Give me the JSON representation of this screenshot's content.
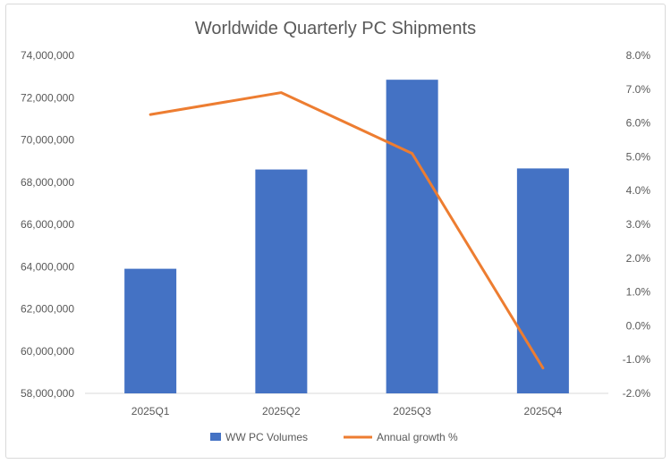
{
  "chart_data": {
    "type": "bar+line",
    "title": "Worldwide Quarterly PC Shipments",
    "categories": [
      "2025Q1",
      "2025Q2",
      "2025Q3",
      "2025Q4"
    ],
    "series": [
      {
        "name": "WW PC Volumes",
        "type": "bar",
        "axis": "left",
        "color": "#4472c4",
        "values": [
          63900000,
          68600000,
          72850000,
          68650000
        ]
      },
      {
        "name": "Annual growth %",
        "type": "line",
        "axis": "right",
        "color": "#ed7d31",
        "values": [
          6.25,
          6.9,
          5.1,
          -1.25
        ]
      }
    ],
    "y_left": {
      "min": 58000000,
      "max": 74000000,
      "step": 2000000,
      "ticks": [
        "58,000,000",
        "60,000,000",
        "62,000,000",
        "64,000,000",
        "66,000,000",
        "68,000,000",
        "70,000,000",
        "72,000,000",
        "74,000,000"
      ]
    },
    "y_right": {
      "min": -2.0,
      "max": 8.0,
      "step": 1.0,
      "ticks": [
        "-2.0%",
        "-1.0%",
        "0.0%",
        "1.0%",
        "2.0%",
        "3.0%",
        "4.0%",
        "5.0%",
        "6.0%",
        "7.0%",
        "8.0%"
      ]
    },
    "grid": false,
    "legend": "bottom",
    "colors": {
      "axis": "#d9d9d9",
      "text": "#595959",
      "title": "#595959"
    }
  }
}
